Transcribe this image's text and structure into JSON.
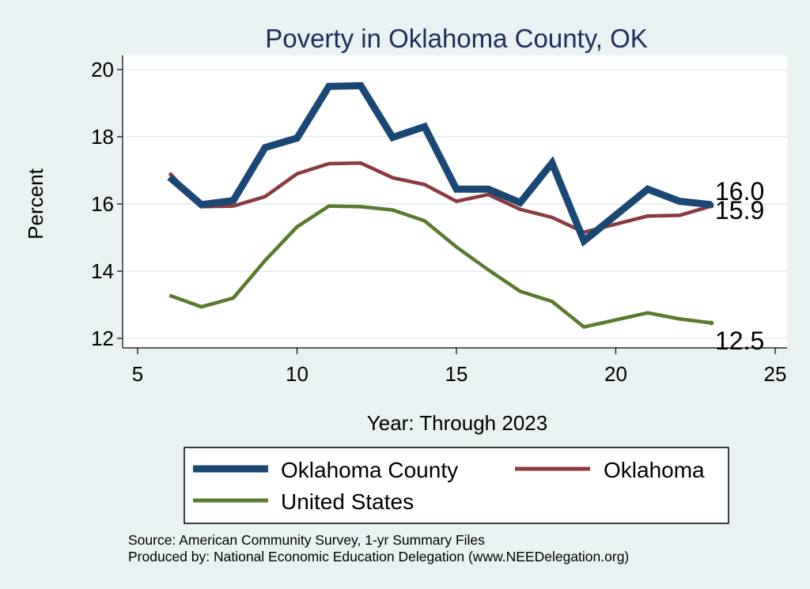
{
  "chart_data": {
    "type": "line",
    "title": "Poverty in Oklahoma County, OK",
    "xlabel": "Year: Through 2023",
    "ylabel": "Percent",
    "xlim": [
      5,
      25
    ],
    "ylim": [
      12,
      20
    ],
    "xticks": [
      5,
      10,
      15,
      20,
      25
    ],
    "yticks": [
      12,
      14,
      16,
      18,
      20
    ],
    "grid": true,
    "legend_position": "bottom",
    "series": [
      {
        "name": "Oklahoma County",
        "color": "#1a4774",
        "x": [
          6,
          7,
          8,
          9,
          10,
          11,
          12,
          13,
          14,
          15,
          16,
          17,
          18,
          19,
          21,
          22,
          23
        ],
        "y": [
          16.8,
          15.98,
          16.1,
          17.68,
          17.96,
          19.5,
          19.52,
          17.98,
          18.3,
          16.44,
          16.44,
          16.04,
          17.22,
          14.9,
          16.44,
          16.08,
          15.98
        ],
        "end_label": "16.0"
      },
      {
        "name": "Oklahoma",
        "color": "#8b3a3f",
        "x": [
          6,
          7,
          8,
          9,
          10,
          11,
          12,
          13,
          14,
          15,
          16,
          17,
          18,
          19,
          21,
          22,
          23
        ],
        "y": [
          16.92,
          15.92,
          15.94,
          16.22,
          16.9,
          17.2,
          17.22,
          16.78,
          16.58,
          16.08,
          16.28,
          15.84,
          15.6,
          15.16,
          15.64,
          15.66,
          15.94
        ],
        "end_label": "15.9"
      },
      {
        "name": "United States",
        "color": "#5b7a2e",
        "x": [
          6,
          7,
          8,
          9,
          10,
          11,
          12,
          13,
          14,
          15,
          16,
          17,
          18,
          19,
          21,
          22,
          23
        ],
        "y": [
          13.28,
          12.94,
          13.2,
          14.32,
          15.32,
          15.94,
          15.92,
          15.82,
          15.5,
          14.72,
          14.04,
          13.4,
          13.1,
          12.34,
          12.76,
          12.58,
          12.46
        ],
        "end_label": "12.5"
      }
    ]
  },
  "source_line": "Source: American Community Survey, 1-yr Summary Files",
  "produced_line": "Produced by: National Economic Education Delegation (www.NEEDelegation.org)"
}
